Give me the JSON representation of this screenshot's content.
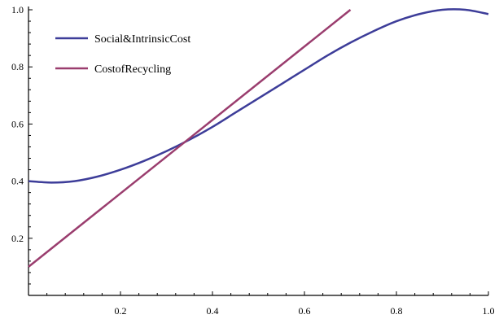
{
  "chart_data": {
    "type": "line",
    "title": "",
    "xlabel": "",
    "ylabel": "",
    "xlim": [
      0,
      1.0
    ],
    "ylim": [
      0,
      1.0
    ],
    "grid": false,
    "legend_position": "top-left",
    "x_ticks": [
      "0.2",
      "0.4",
      "0.6",
      "0.8",
      "1.0"
    ],
    "y_ticks": [
      "0.2",
      "0.4",
      "0.6",
      "0.8",
      "1.0"
    ],
    "series": [
      {
        "name": "Social&IntrinsicCost",
        "color": "#3d3d99",
        "x": [
          0.0,
          0.05,
          0.1,
          0.15,
          0.2,
          0.25,
          0.3,
          0.35,
          0.4,
          0.45,
          0.5,
          0.55,
          0.6,
          0.65,
          0.7,
          0.75,
          0.8,
          0.85,
          0.9,
          0.95,
          1.0
        ],
        "y": [
          0.4,
          0.395,
          0.4,
          0.416,
          0.44,
          0.47,
          0.505,
          0.545,
          0.59,
          0.64,
          0.69,
          0.74,
          0.79,
          0.84,
          0.885,
          0.925,
          0.96,
          0.985,
          1.0,
          1.0,
          0.985
        ]
      },
      {
        "name": "CostofRecycling",
        "color": "#9a3d6e",
        "x": [
          0.0,
          0.7
        ],
        "y": [
          0.1,
          1.0
        ]
      }
    ]
  }
}
